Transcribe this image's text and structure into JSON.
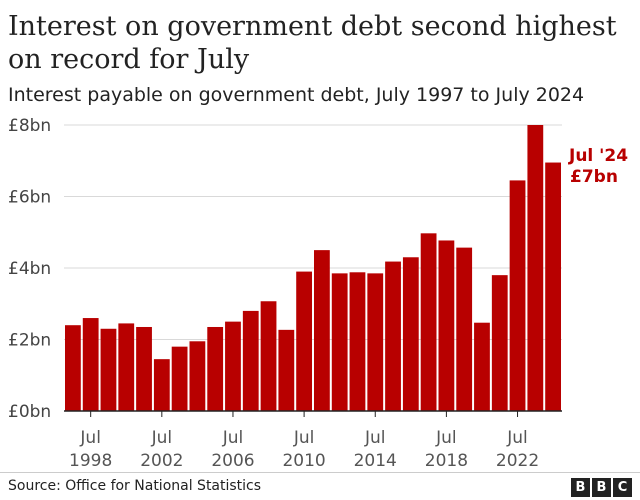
{
  "header": {
    "title": "Interest on government debt second highest on record for July",
    "subtitle": "Interest payable on government debt, July 1997 to July 2024"
  },
  "footer": {
    "source": "Source: Office for National Statistics",
    "logo_letters": [
      "B",
      "B",
      "C"
    ]
  },
  "colors": {
    "bar": "#b80000",
    "grid": "#d9d9d9",
    "axis": "#222222"
  },
  "chart_data": {
    "type": "bar",
    "title": "Interest on government debt second highest on record for July",
    "subtitle": "Interest payable on government debt, July 1997 to July 2024",
    "x": [
      1997,
      1998,
      1999,
      2000,
      2001,
      2002,
      2003,
      2004,
      2005,
      2006,
      2007,
      2008,
      2009,
      2010,
      2011,
      2012,
      2013,
      2014,
      2015,
      2016,
      2017,
      2018,
      2019,
      2020,
      2021,
      2022,
      2023,
      2024
    ],
    "values": [
      2.4,
      2.6,
      2.3,
      2.45,
      2.35,
      1.45,
      1.8,
      1.95,
      2.35,
      2.5,
      2.8,
      3.07,
      2.27,
      3.9,
      4.5,
      3.85,
      3.88,
      3.85,
      4.18,
      4.3,
      4.97,
      4.77,
      4.57,
      2.47,
      3.8,
      6.45,
      8.0,
      6.95
    ],
    "ylim": [
      0,
      8
    ],
    "yticks": [
      0,
      2,
      4,
      6,
      8
    ],
    "ytick_labels": [
      "£0bn",
      "£2bn",
      "£4bn",
      "£6bn",
      "£8bn"
    ],
    "xticks": [
      1998,
      2002,
      2006,
      2010,
      2014,
      2018,
      2022
    ],
    "xtick_labels_top": [
      "Jul",
      "Jul",
      "Jul",
      "Jul",
      "Jul",
      "Jul",
      "Jul"
    ],
    "xtick_labels_bottom": [
      "1998",
      "2002",
      "2006",
      "2010",
      "2014",
      "2018",
      "2022"
    ],
    "annotation": {
      "line1": "Jul '24",
      "line2": "£7bn",
      "x": 2024
    },
    "grid": true,
    "xlabel": "",
    "ylabel": ""
  }
}
